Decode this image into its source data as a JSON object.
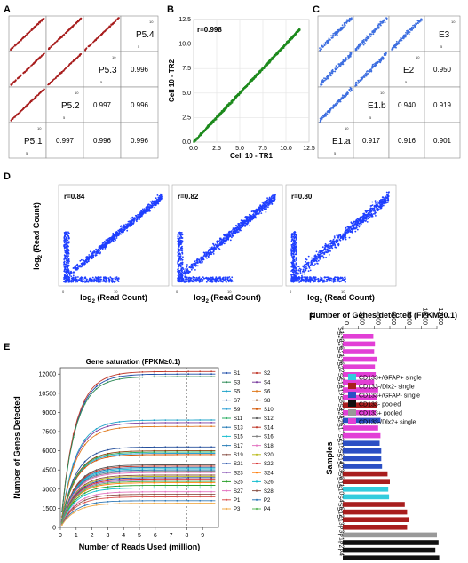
{
  "panel_labels": {
    "A": "A",
    "B": "B",
    "C": "C",
    "D": "D",
    "E": "E",
    "F": "F"
  },
  "panel_a": {
    "diag_labels": [
      "P5.4",
      "P5.3",
      "P5.2",
      "P5.1"
    ],
    "corner_small": "5",
    "corner_small2": "10",
    "r_values": [
      [
        "0.996"
      ],
      [
        "0.997",
        "0.996"
      ],
      [
        "0.997",
        "0.996",
        "0.996"
      ]
    ]
  },
  "panel_b": {
    "r_label": "r=0.998",
    "xlabel": "Cell 10 - TR1",
    "ylabel": "Cell 10 - TR2",
    "ticks": [
      "0.0",
      "2.5",
      "5.0",
      "7.5",
      "10.0",
      "12.5"
    ]
  },
  "panel_c": {
    "diag_labels": [
      "E3",
      "E2",
      "E1.b",
      "E1.a"
    ],
    "r_values": [
      [
        "0.950"
      ],
      [
        "0.940",
        "0.919"
      ],
      [
        "0.917",
        "0.916",
        "0.901"
      ]
    ]
  },
  "panel_d": {
    "r_labels": [
      "r=0.84",
      "r=0.82",
      "r=0.80"
    ],
    "ylabel_main": "log",
    "ylabel_sub": "2",
    "ylabel_rest": " (Read Count)",
    "xlabel_main": "log",
    "xlabel_sub": "2",
    "xlabel_rest": " (Read Count)"
  },
  "chart_data": [
    {
      "type": "line",
      "title": "Gene saturation (FPKM≥0.1)",
      "xlabel": "Number of Reads Used (million)",
      "ylabel": "Number of Genes Detected",
      "xlim": [
        0,
        10
      ],
      "ylim": [
        0,
        12500
      ],
      "x_ticks": [
        "0",
        "1",
        "2",
        "3",
        "4",
        "5",
        "6",
        "7",
        "8",
        "9"
      ],
      "y_ticks": [
        "0",
        "1500",
        "3000",
        "4500",
        "6000",
        "7500",
        "9000",
        "10500",
        "12000"
      ],
      "reference_lines_x": [
        5,
        8
      ],
      "legend": [
        "S1",
        "S2",
        "S3",
        "S4",
        "S5",
        "S6",
        "S7",
        "S8",
        "S9",
        "S10",
        "S11",
        "S12",
        "S13",
        "S14",
        "S15",
        "S16",
        "S17",
        "S18",
        "S19",
        "S20",
        "S21",
        "S22",
        "S23",
        "S24",
        "S25",
        "S26",
        "S27",
        "S28",
        "P1",
        "P2",
        "P3",
        "P4"
      ],
      "series_colors": [
        "#1f4ea8",
        "#c0392b",
        "#2e8b57",
        "#7b3fa0",
        "#1fa3c9",
        "#e07b20",
        "#254f9c",
        "#8b4513",
        "#2a9fd6",
        "#d35400",
        "#27ae60",
        "#555555",
        "#1f77b4",
        "#c0392b",
        "#17becf",
        "#7f7f7f",
        "#2c7fb8",
        "#e377c2",
        "#8c564b",
        "#bcbd22",
        "#1f4ea8",
        "#d62728",
        "#9467bd",
        "#ff7f0e",
        "#2ca02c",
        "#17becf",
        "#e377c2",
        "#8c564b",
        "#d9534f",
        "#337ab7",
        "#f0ad4e",
        "#5cb85c"
      ],
      "plateaus": [
        12000,
        12200,
        11800,
        8200,
        8400,
        7900,
        6300,
        6000,
        5800,
        5700,
        5900,
        4900,
        4700,
        4800,
        4600,
        4400,
        4500,
        4300,
        4100,
        4000,
        3900,
        3800,
        3700,
        3500,
        3300,
        3100,
        2800,
        2600,
        2400,
        2100,
        1900,
        3600
      ]
    },
    {
      "type": "bar",
      "title": "Number of Genes detected (FPKM≥0.1)",
      "ylabel": "Samples",
      "x_ticks": [
        "0",
        "2000",
        "4000",
        "6000",
        "8000",
        "10000",
        "12000"
      ],
      "xlim": [
        0,
        12000
      ],
      "categories": [
        "S1",
        "S20",
        "S26",
        "S21",
        "S16",
        "S22",
        "S7",
        "S18",
        "S19",
        "S8",
        "S9",
        "S24",
        "S25",
        "S17",
        "S2",
        "S15",
        "S3",
        "S14",
        "S23",
        "S6",
        "S11",
        "S10",
        "S4",
        "S5",
        "S12",
        "S13",
        "P3",
        "P1",
        "P2",
        "P4"
      ],
      "groups": [
        "pink",
        "pink",
        "pink",
        "pink",
        "pink",
        "pink",
        "pink",
        "pink",
        "pink",
        "dkred",
        "pink",
        "blue",
        "pink",
        "pink",
        "blue",
        "blue",
        "blue",
        "blue",
        "dkred",
        "dkred",
        "cyan",
        "cyan",
        "dkred",
        "dkred",
        "dkred",
        "dkred",
        "gray",
        "black",
        "black",
        "black"
      ],
      "values": [
        3900,
        4100,
        4000,
        4300,
        4100,
        4200,
        4000,
        4500,
        4300,
        4400,
        4200,
        4800,
        4500,
        4800,
        4700,
        4900,
        4900,
        5000,
        5700,
        6000,
        5800,
        5900,
        7900,
        8200,
        8400,
        8200,
        12000,
        12200,
        11800,
        12300
      ]
    }
  ],
  "panel_f_legend": [
    {
      "label": "CD133+/GFAP+ single",
      "color": "#33ccdd"
    },
    {
      "label": "CD133-/Dlx2-  single",
      "color": "#a81e1e"
    },
    {
      "label": "CD133+/GFAP- single",
      "color": "#2b4fc4"
    },
    {
      "label": "CD133- pooled",
      "color": "#111111"
    },
    {
      "label": "CD133+ pooled",
      "color": "#999999"
    },
    {
      "label": "CD133-/Dlx2+ single",
      "color": "#e23fd6"
    }
  ],
  "group_colors": {
    "pink": "#e23fd6",
    "dkred": "#a81e1e",
    "blue": "#2b4fc4",
    "cyan": "#33ccdd",
    "gray": "#999999",
    "black": "#111111"
  }
}
